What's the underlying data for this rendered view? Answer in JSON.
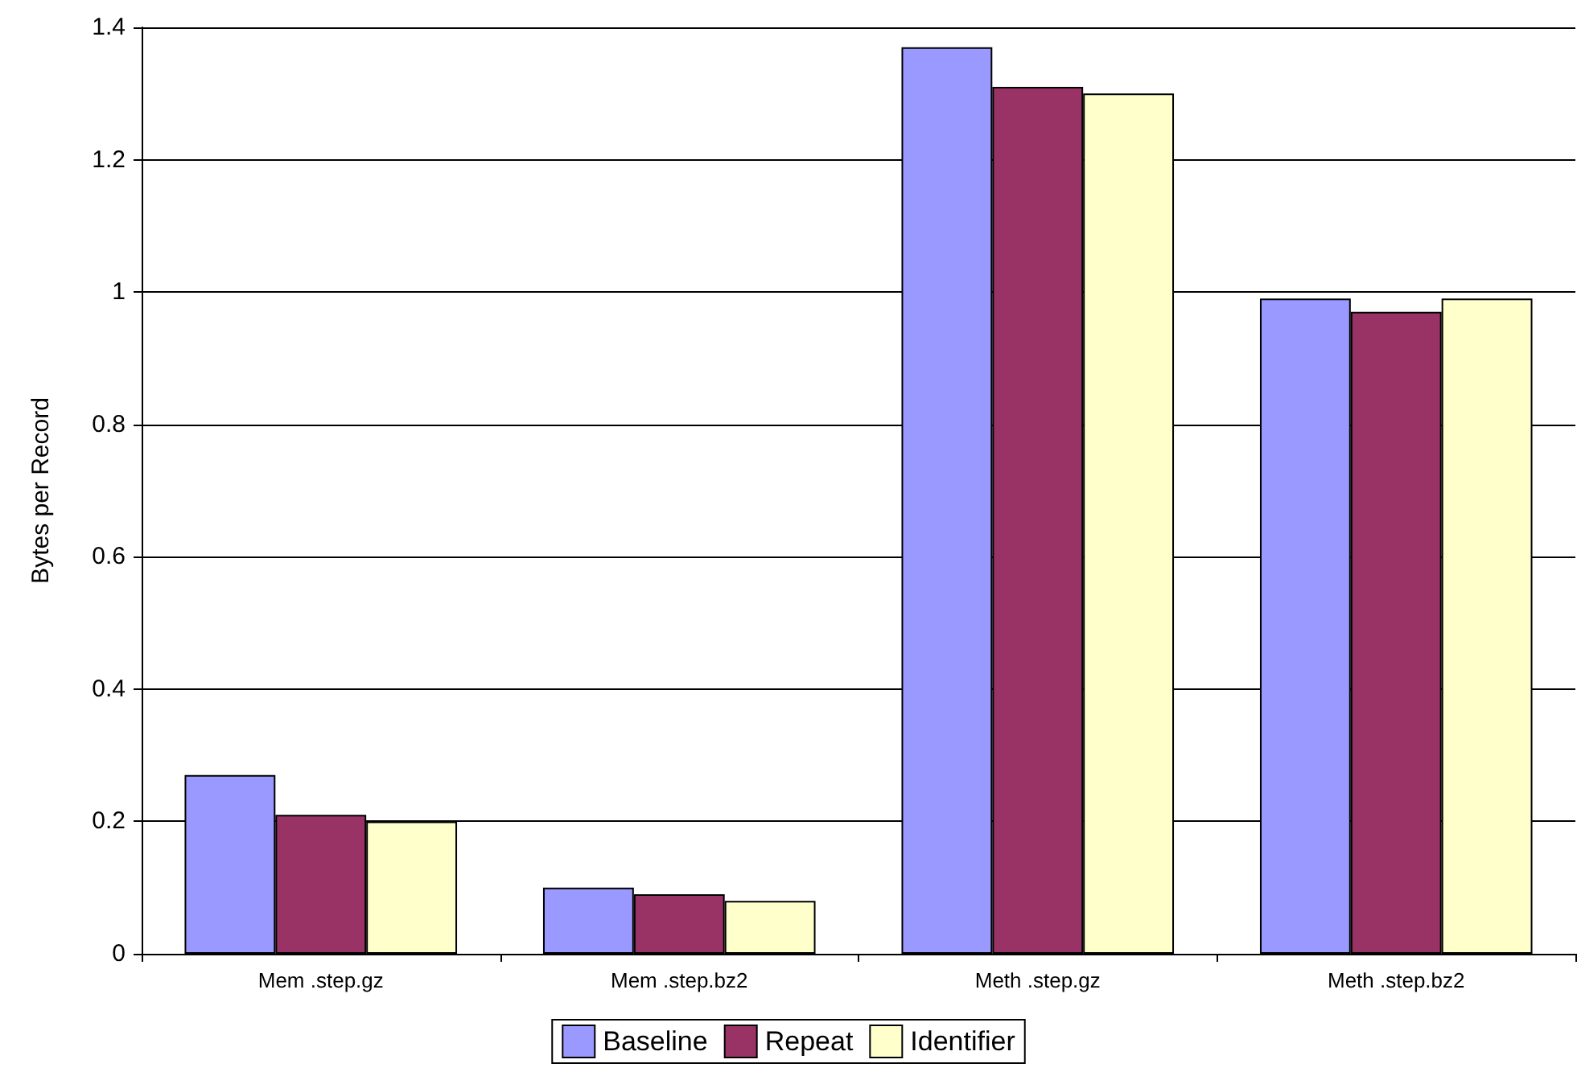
{
  "chart_data": {
    "type": "bar",
    "ylabel": "Bytes per Record",
    "categories": [
      "Mem .step.gz",
      "Mem .step.bz2",
      "Meth .step.gz",
      "Meth .step.bz2"
    ],
    "series": [
      {
        "name": "Baseline",
        "color": "#9999ff",
        "values": [
          0.27,
          0.1,
          1.37,
          0.99
        ]
      },
      {
        "name": "Repeat",
        "color": "#993366",
        "values": [
          0.21,
          0.09,
          1.31,
          0.97
        ]
      },
      {
        "name": "Identifier",
        "color": "#ffffcc",
        "values": [
          0.2,
          0.08,
          1.3,
          0.99
        ]
      }
    ],
    "ylim": [
      0,
      1.4
    ],
    "yticks": [
      0,
      0.2,
      0.4,
      0.6,
      0.8,
      1,
      1.2,
      1.4
    ],
    "grid": "y",
    "legend": "bottom"
  }
}
